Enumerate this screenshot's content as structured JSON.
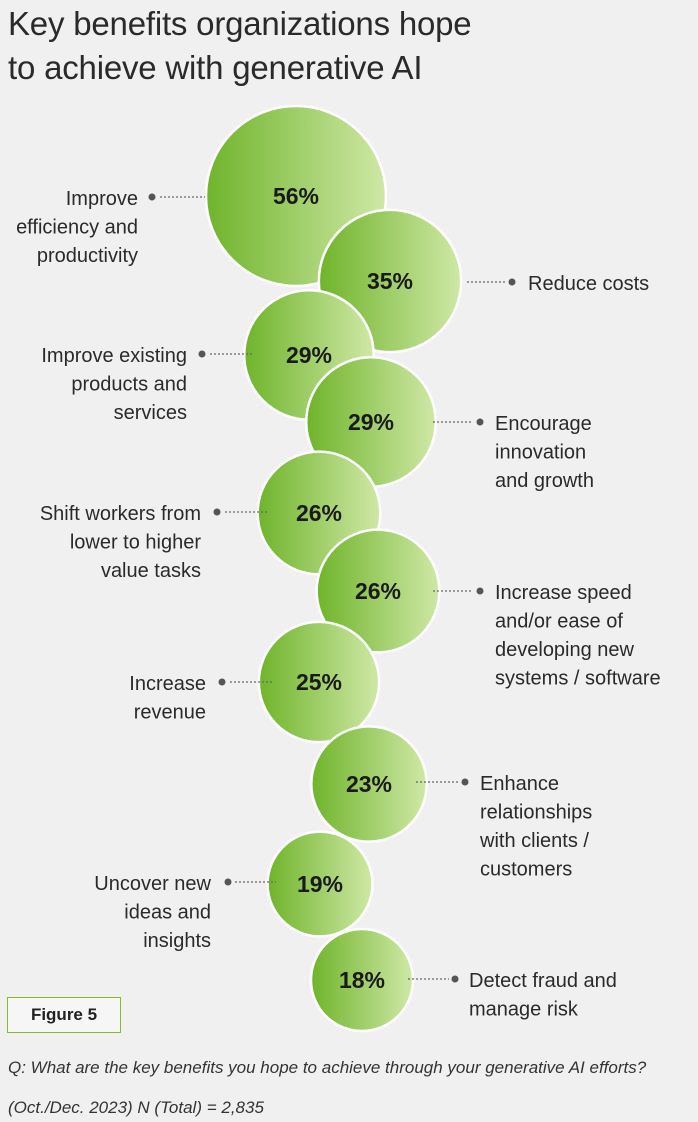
{
  "title": {
    "line1": "Key benefits organizations hope",
    "line2": "to achieve with generative AI"
  },
  "figure_label": "Figure 5",
  "question": "Q: What are the key benefits you hope to achieve through your generative AI efforts?",
  "note": "(Oct./Dec. 2023) N (Total) = 2,835",
  "colors": {
    "bubble_dark": "#6fb42b",
    "bubble_light": "#cfe8a6",
    "connector": "#666666",
    "dot": "#555555"
  },
  "chart_data": {
    "type": "bubble",
    "unit": "%",
    "items": [
      {
        "value": 56,
        "value_label": "56%",
        "label": [
          "Improve",
          "efficiency and",
          "productivity"
        ],
        "side": "left"
      },
      {
        "value": 35,
        "value_label": "35%",
        "label": [
          "Reduce costs"
        ],
        "side": "right"
      },
      {
        "value": 29,
        "value_label": "29%",
        "label": [
          "Improve existing",
          "products and",
          "services"
        ],
        "side": "left"
      },
      {
        "value": 29,
        "value_label": "29%",
        "label": [
          "Encourage",
          "innovation",
          "and growth"
        ],
        "side": "right"
      },
      {
        "value": 26,
        "value_label": "26%",
        "label": [
          "Shift workers from",
          "lower to higher",
          "value tasks"
        ],
        "side": "left"
      },
      {
        "value": 26,
        "value_label": "26%",
        "label": [
          "Increase speed",
          "and/or ease of",
          "developing new",
          "systems / software"
        ],
        "side": "right"
      },
      {
        "value": 25,
        "value_label": "25%",
        "label": [
          "Increase",
          "revenue"
        ],
        "side": "left"
      },
      {
        "value": 23,
        "value_label": "23%",
        "label": [
          "Enhance",
          "relationships",
          "with clients /",
          "customers"
        ],
        "side": "right"
      },
      {
        "value": 19,
        "value_label": "19%",
        "label": [
          "Uncover new",
          "ideas and",
          "insights"
        ],
        "side": "left"
      },
      {
        "value": 18,
        "value_label": "18%",
        "label": [
          "Detect fraud and",
          "manage risk"
        ],
        "side": "right"
      }
    ]
  }
}
